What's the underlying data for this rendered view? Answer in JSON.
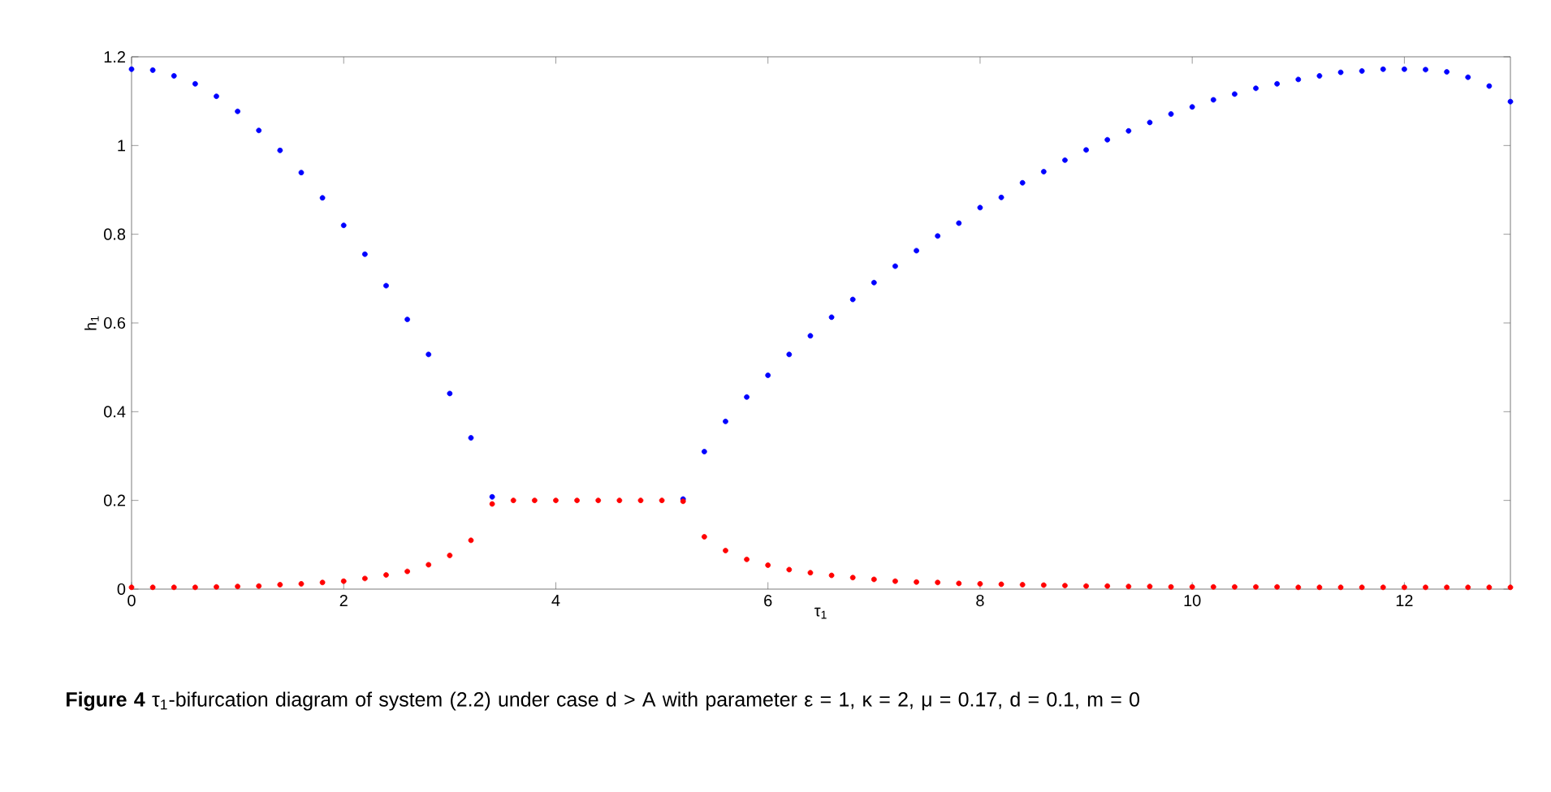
{
  "chart_data": {
    "type": "scatter",
    "xlabel": "τ$_{1}$",
    "ylabel": "h$_{1}$",
    "x": [
      0,
      0.2,
      0.4,
      0.6,
      0.8,
      1.0,
      1.2,
      1.4,
      1.6,
      1.8,
      2.0,
      2.2,
      2.4,
      2.6,
      2.8,
      3.0,
      3.2,
      3.4,
      3.6,
      3.8,
      4.0,
      4.2,
      4.4,
      4.6,
      4.8,
      5.0,
      5.2,
      5.4,
      5.6,
      5.8,
      6.0,
      6.2,
      6.4,
      6.6,
      6.8,
      7.0,
      7.2,
      7.4,
      7.6,
      7.8,
      8.0,
      8.2,
      8.4,
      8.6,
      8.8,
      9.0,
      9.2,
      9.4,
      9.6,
      9.8,
      10.0,
      10.2,
      10.4,
      10.6,
      10.8,
      11.0,
      11.2,
      11.4,
      11.6,
      11.8,
      12.0,
      12.2,
      12.4,
      12.6,
      12.8,
      13.0
    ],
    "series": [
      {
        "color": "#0000ff",
        "values": [
          1.172,
          1.17,
          1.157,
          1.139,
          1.111,
          1.077,
          1.034,
          0.989,
          0.939,
          0.882,
          0.82,
          0.755,
          0.684,
          0.608,
          0.529,
          0.441,
          0.341,
          0.208,
          null,
          null,
          null,
          null,
          null,
          null,
          null,
          null,
          0.203,
          0.31,
          0.378,
          0.433,
          0.482,
          0.529,
          0.571,
          0.613,
          0.653,
          0.691,
          0.728,
          0.763,
          0.796,
          0.825,
          0.86,
          0.883,
          0.916,
          0.941,
          0.967,
          0.99,
          1.013,
          1.033,
          1.052,
          1.071,
          1.087,
          1.103,
          1.116,
          1.129,
          1.139,
          1.149,
          1.157,
          1.165,
          1.168,
          1.172,
          1.172,
          1.171,
          1.166,
          1.154,
          1.134,
          1.099
        ]
      },
      {
        "color": "#ff0000",
        "values": [
          0.004,
          0.004,
          0.004,
          0.004,
          0.005,
          0.006,
          0.007,
          0.01,
          0.012,
          0.015,
          0.018,
          0.024,
          0.032,
          0.04,
          0.055,
          0.076,
          0.11,
          0.192,
          0.2,
          0.2,
          0.2,
          0.2,
          0.2,
          0.2,
          0.2,
          0.2,
          0.198,
          0.118,
          0.087,
          0.067,
          0.054,
          0.044,
          0.037,
          0.031,
          0.026,
          0.022,
          0.018,
          0.016,
          0.015,
          0.013,
          0.012,
          0.011,
          0.01,
          0.009,
          0.008,
          0.007,
          0.007,
          0.006,
          0.006,
          0.005,
          0.005,
          0.005,
          0.005,
          0.005,
          0.005,
          0.004,
          0.004,
          0.004,
          0.004,
          0.004,
          0.004,
          0.004,
          0.004,
          0.004,
          0.004,
          0.004
        ]
      }
    ],
    "xlim": [
      0,
      13
    ],
    "ylim": [
      0,
      1.2
    ],
    "xticks": [
      0,
      2,
      4,
      6,
      8,
      10,
      12
    ],
    "yticks": [
      0,
      0.2,
      0.4,
      0.6,
      0.8,
      1,
      1.2
    ],
    "grid": false,
    "annotations": [
      "**Figure 4** τ$_{1}$-bifurcation diagram of system (2.2) under case d > A with parameter ε = 1, κ = 2, μ = 0.17, d = 0.1, m = 0"
    ]
  }
}
